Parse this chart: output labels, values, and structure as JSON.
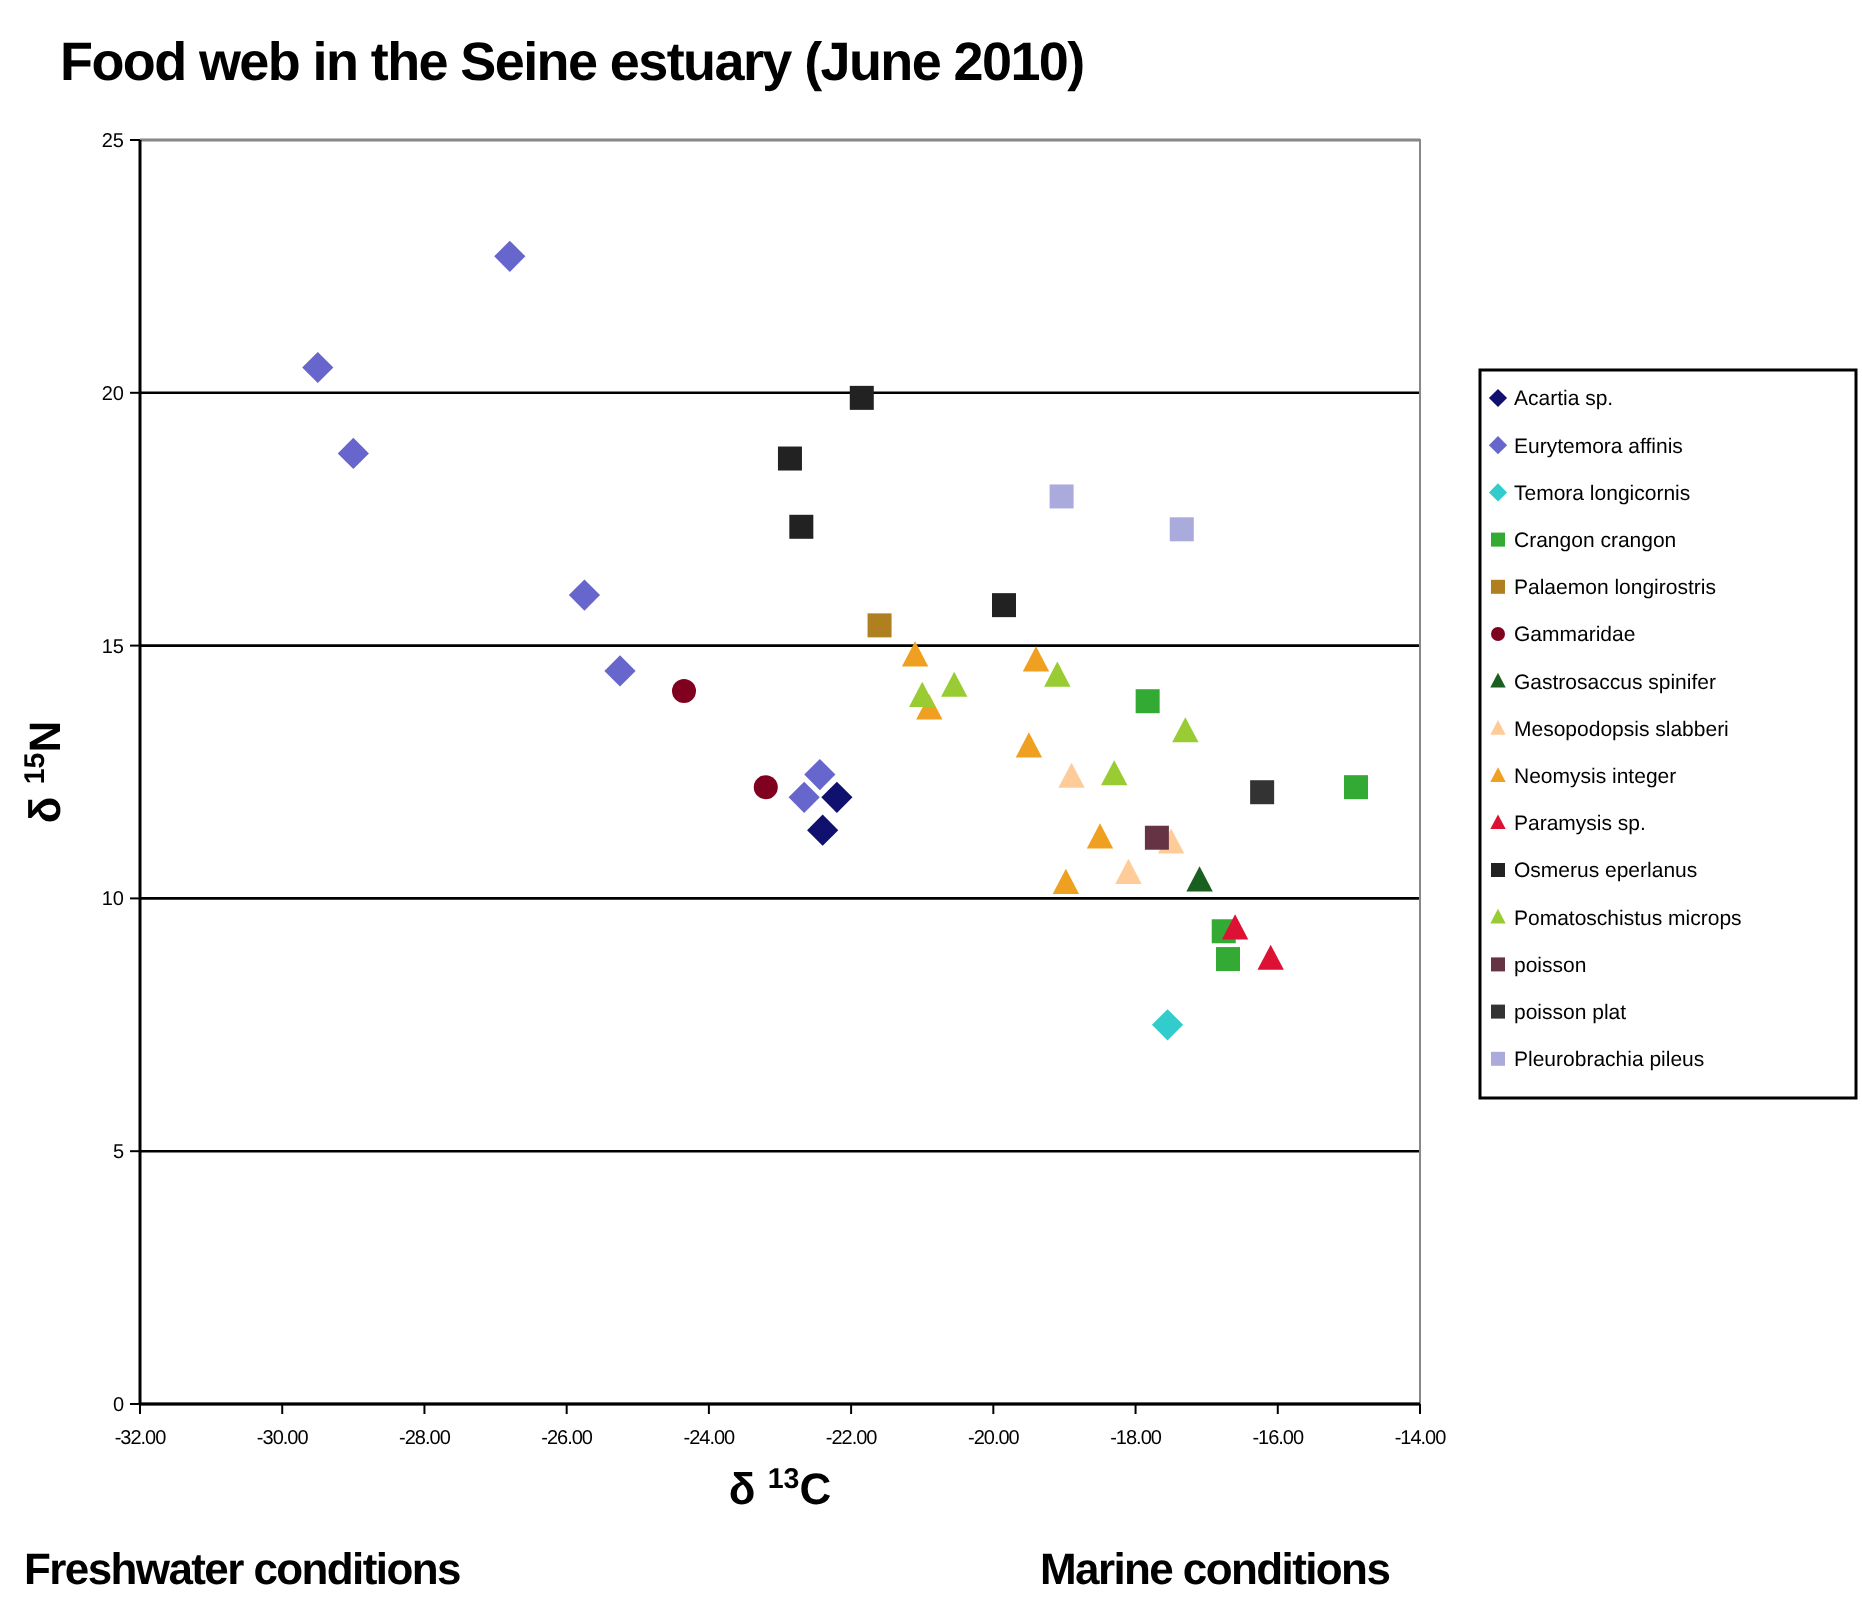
{
  "chart_data": {
    "type": "scatter",
    "title": "Food web in the Seine estuary (June 2010)",
    "xlabel": "δ $^{13}$C",
    "ylabel": "δ $^{15}$N",
    "annotations": [
      "Freshwater conditions",
      "Marine conditions"
    ],
    "xlim": [
      -32,
      -14
    ],
    "xticks": [
      {
        "value": -32,
        "label": "-32.00"
      },
      {
        "value": -30,
        "label": "-30.00"
      },
      {
        "value": -28,
        "label": "-28.00"
      },
      {
        "value": -26,
        "label": "-26.00"
      },
      {
        "value": -24,
        "label": "-24.00"
      },
      {
        "value": -22,
        "label": "-22.00"
      },
      {
        "value": -20,
        "label": "-20.00"
      },
      {
        "value": -18,
        "label": "-18.00"
      },
      {
        "value": -16,
        "label": "-16.00"
      },
      {
        "value": -14,
        "label": "-14.00"
      }
    ],
    "ylim": [
      0,
      25
    ],
    "yticks": [
      0,
      5,
      10,
      15,
      20,
      25
    ],
    "grid": "y",
    "legend": "right",
    "series": [
      {
        "name": "Acartia sp.",
        "color": "#10106e",
        "marker": "diamond",
        "x": [
          -22.2,
          -22.4
        ],
        "values": [
          12.0,
          11.35
        ]
      },
      {
        "name": "Eurytemora affinis",
        "color": "#6666cc",
        "marker": "diamond",
        "x": [
          -29.5,
          -29.0,
          -26.8,
          -25.75,
          -25.25,
          -22.66,
          -22.44
        ],
        "values": [
          20.5,
          18.8,
          22.7,
          16.0,
          14.5,
          12.0,
          12.45
        ]
      },
      {
        "name": "Temora longicornis",
        "color": "#33cccc",
        "marker": "diamond",
        "x": [
          -17.55
        ],
        "values": [
          7.5
        ]
      },
      {
        "name": "Crangon crangon",
        "color": "#33aa33",
        "marker": "square",
        "x": [
          -17.83,
          -14.9,
          -16.76,
          -16.7
        ],
        "values": [
          13.9,
          12.2,
          9.35,
          8.8
        ]
      },
      {
        "name": "Palaemon longirostris",
        "color": "#b08020",
        "marker": "square",
        "x": [
          -21.6
        ],
        "values": [
          15.4
        ]
      },
      {
        "name": "Gammaridae",
        "color": "#800020",
        "marker": "circle",
        "x": [
          -24.35,
          -23.2
        ],
        "values": [
          14.1,
          12.2
        ]
      },
      {
        "name": "Gastrosaccus spinifer",
        "color": "#1a5e20",
        "marker": "triangle",
        "x": [
          -17.1
        ],
        "values": [
          10.35
        ]
      },
      {
        "name": "Mesopodopsis slabberi",
        "color": "#ffcc99",
        "marker": "triangle",
        "x": [
          -18.9,
          -18.1,
          -17.5
        ],
        "values": [
          12.4,
          10.5,
          11.1
        ]
      },
      {
        "name": "Neomysis integer",
        "color": "#f0a020",
        "marker": "triangle",
        "x": [
          -21.1,
          -20.9,
          -19.4,
          -19.5,
          -18.5,
          -18.98
        ],
        "values": [
          14.8,
          13.75,
          14.7,
          13.0,
          11.2,
          10.3
        ]
      },
      {
        "name": "Paramysis sp.",
        "color": "#dd1133",
        "marker": "triangle",
        "x": [
          -16.6,
          -16.1
        ],
        "values": [
          9.4,
          8.8
        ]
      },
      {
        "name": "Osmerus eperlanus",
        "color": "#222222",
        "marker": "square",
        "x": [
          -21.85,
          -22.86,
          -22.7,
          -19.85
        ],
        "values": [
          19.9,
          18.7,
          17.35,
          15.8
        ]
      },
      {
        "name": "Pomatoschistus microps",
        "color": "#99cc33",
        "marker": "triangle",
        "x": [
          -21.0,
          -20.55,
          -19.1,
          -17.3,
          -18.3
        ],
        "values": [
          14.0,
          14.2,
          14.4,
          13.3,
          12.45
        ]
      },
      {
        "name": "poisson",
        "color": "#663344",
        "marker": "square",
        "x": [
          -17.7
        ],
        "values": [
          11.2
        ]
      },
      {
        "name": "poisson plat",
        "color": "#333333",
        "marker": "square",
        "x": [
          -16.22
        ],
        "values": [
          12.1
        ]
      },
      {
        "name": "Pleurobrachia pileus",
        "color": "#aaaadd",
        "marker": "square",
        "x": [
          -19.04,
          -17.35
        ],
        "values": [
          17.95,
          17.3
        ]
      }
    ]
  }
}
